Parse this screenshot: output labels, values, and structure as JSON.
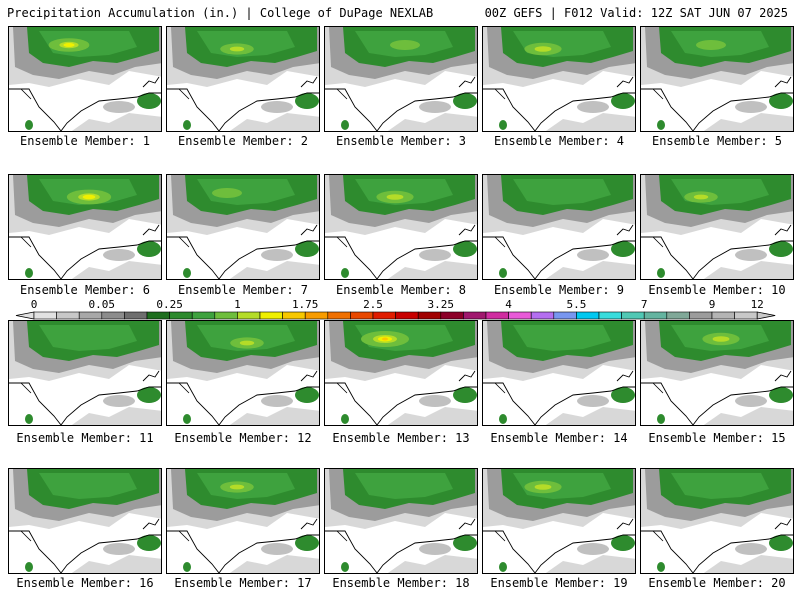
{
  "header": {
    "left": "Precipitation Accumulation (in.) | College of DuPage NEXLAB",
    "right": "00Z GEFS | F012 Valid: 12Z SAT JUN 07 2025"
  },
  "panels": [
    {
      "label": "Ensemble Member: 1"
    },
    {
      "label": "Ensemble Member: 2"
    },
    {
      "label": "Ensemble Member: 3"
    },
    {
      "label": "Ensemble Member: 4"
    },
    {
      "label": "Ensemble Member: 5"
    },
    {
      "label": "Ensemble Member: 6"
    },
    {
      "label": "Ensemble Member: 7"
    },
    {
      "label": "Ensemble Member: 8"
    },
    {
      "label": "Ensemble Member: 9"
    },
    {
      "label": "Ensemble Member: 10"
    },
    {
      "label": "Ensemble Member: 11"
    },
    {
      "label": "Ensemble Member: 12"
    },
    {
      "label": "Ensemble Member: 13"
    },
    {
      "label": "Ensemble Member: 14"
    },
    {
      "label": "Ensemble Member: 15"
    },
    {
      "label": "Ensemble Member: 16"
    },
    {
      "label": "Ensemble Member: 17"
    },
    {
      "label": "Ensemble Member: 18"
    },
    {
      "label": "Ensemble Member: 19"
    },
    {
      "label": "Ensemble Member: 20"
    }
  ],
  "colorbar": {
    "tick_labels": [
      "0",
      "0.05",
      "0.25",
      "1",
      "1.75",
      "2.5",
      "3.25",
      "4",
      "5.5",
      "7",
      "9",
      "12"
    ],
    "colors": [
      "#e2e2e2",
      "#c8c8c8",
      "#a8a8a8",
      "#8c8c8c",
      "#6e6e6e",
      "#1e6e1e",
      "#2c8a2c",
      "#3ea23e",
      "#6ebe3c",
      "#b4dc28",
      "#f0f000",
      "#f8c800",
      "#f89c00",
      "#f07000",
      "#e84800",
      "#e01c00",
      "#c80000",
      "#a00000",
      "#8c0028",
      "#a0186e",
      "#d02ca0",
      "#e85ad8",
      "#b46ef0",
      "#7896f0",
      "#00c8f0",
      "#38dcdc",
      "#50c8b4",
      "#64b4a0",
      "#80a898",
      "#9c9c9c",
      "#b4b4b4",
      "#c8c8c8"
    ]
  }
}
